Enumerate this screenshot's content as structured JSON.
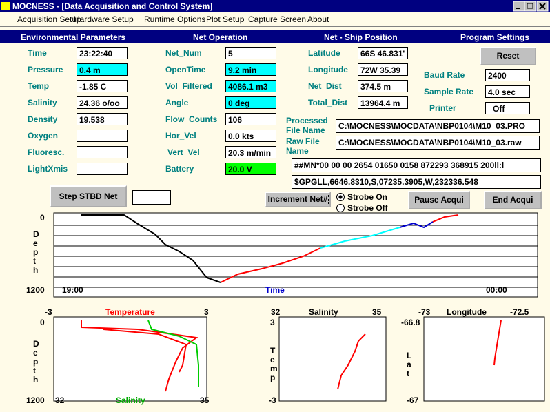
{
  "window": {
    "title": "MOCNESS - [Data Acquisition and Control System]"
  },
  "menu": [
    "Acquisition Setup",
    "Hardware Setup",
    "Runtime Options",
    "Plot Setup",
    "Capture Screen",
    "About"
  ],
  "sections": [
    "Environmental Parameters",
    "Net Operation",
    "Net - Ship Position",
    "Program Settings"
  ],
  "environment": [
    {
      "label": "Time",
      "value": "23:22:40"
    },
    {
      "label": "Pressure",
      "value": "0.4 m"
    },
    {
      "label": "Temp",
      "value": "-1.85 C"
    },
    {
      "label": "Salinity",
      "value": "24.36 o/oo"
    },
    {
      "label": "Density",
      "value": "19.538"
    },
    {
      "label": "Oxygen",
      "value": ""
    },
    {
      "label": "Fluoresc.",
      "value": ""
    },
    {
      "label": "LightXmis",
      "value": ""
    }
  ],
  "net": [
    {
      "label": "Net_Num",
      "value": "5"
    },
    {
      "label": "OpenTime",
      "value": "9.2 min"
    },
    {
      "label": "Vol_Filtered",
      "value": "4086.1 m3"
    },
    {
      "label": "Angle",
      "value": "0 deg"
    },
    {
      "label": "Flow_Counts",
      "value": "106"
    },
    {
      "label": "Hor_Vel",
      "value": "0.0 kts"
    },
    {
      "label": "Vert_Vel",
      "value": "20.3 m/min"
    },
    {
      "label": "Battery",
      "value": "20.0 V"
    }
  ],
  "position": [
    {
      "label": "Latitude",
      "value": "66S 46.831'"
    },
    {
      "label": "Longitude",
      "value": "72W 35.39"
    },
    {
      "label": "Net_Dist",
      "value": "374.5 m"
    },
    {
      "label": "Total_Dist",
      "value": "13964.4 m"
    }
  ],
  "settings": {
    "reset": "Reset",
    "fields": [
      {
        "label": "Baud Rate",
        "value": "2400"
      },
      {
        "label": "Sample Rate",
        "value": "4.0 sec"
      },
      {
        "label": "Printer",
        "value": "Off"
      }
    ]
  },
  "files": [
    {
      "label": "Processed File Name",
      "value": "C:\\MOCNESS\\MOCDATA\\NBP0104\\M10_03.PRO"
    },
    {
      "label": "Raw File Name",
      "value": "C:\\MOCNESS\\MOCDATA\\NBP0104\\M10_03.raw"
    }
  ],
  "streams": [
    "##MN*00 00 00 2654 01650 0158 872293 368915 200ll:l",
    "$GPGLL,6646.8310,S,07235.3905,W,232336.548"
  ],
  "buttons": {
    "step": "Step STBD Net",
    "increment": "Increment Net#",
    "pause": "Pause Acqui",
    "end": "End Acqui"
  },
  "strobe": [
    "Strobe On",
    "Strobe Off"
  ],
  "depth_plot": {
    "ylabel": "Depth",
    "ytop": "0",
    "ybottom": "1200",
    "xstart": "19:00",
    "xlabel": "Time",
    "xend": "00:00"
  },
  "small_plots": [
    {
      "top_left": "-3",
      "top_title": "Temperature",
      "top_right": "3",
      "y_top": "0",
      "ylabel": "Depth",
      "y_bottom": "1200",
      "bottom_left": "32",
      "bottom_title": "Salinity",
      "bottom_right": "35"
    },
    {
      "top_left": "32",
      "top_title": "Salinity",
      "top_right": "35",
      "y_top": "3",
      "ylabel": "Temp",
      "y_bottom": "-3"
    },
    {
      "top_left": "-73",
      "top_title": "Longitude",
      "top_right": "-72.5",
      "y_top": "-66.8",
      "ylabel": "Lat",
      "y_bottom": "-67"
    }
  ]
}
